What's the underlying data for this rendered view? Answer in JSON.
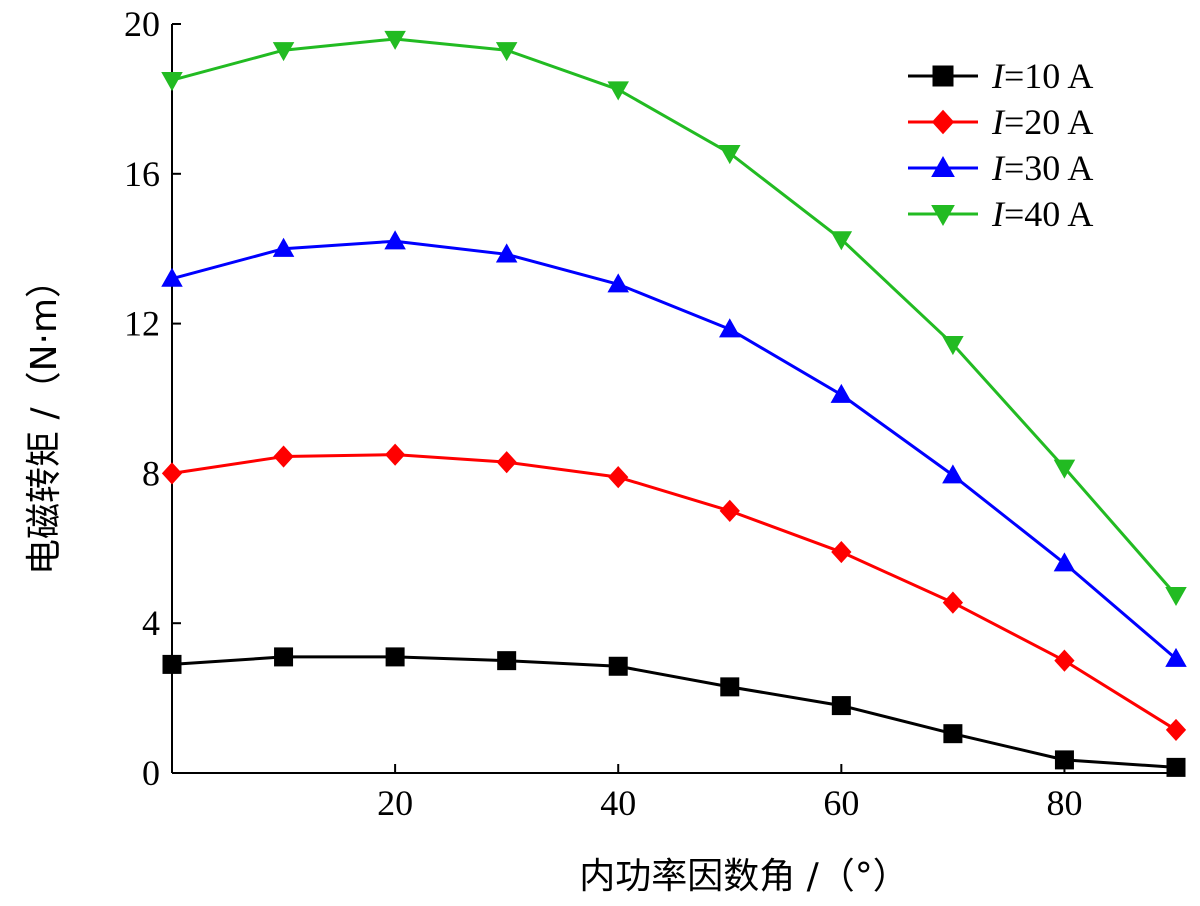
{
  "chart_data": {
    "type": "line",
    "xlabel": "内功率因数角 /（°）",
    "ylabel": "电磁转矩 /（N·m）",
    "xlim": [
      0,
      90
    ],
    "ylim": [
      0,
      20
    ],
    "xticks": [
      20,
      40,
      60,
      80
    ],
    "yticks": [
      0,
      4,
      8,
      12,
      16,
      20
    ],
    "xtick_labels": [
      "20",
      "40",
      "60",
      "80"
    ],
    "ytick_labels": [
      "0",
      "4",
      "8",
      "12",
      "16",
      "20"
    ],
    "legend_position": "top-right",
    "x": [
      0,
      10,
      20,
      30,
      40,
      50,
      60,
      70,
      80,
      90
    ],
    "series": [
      {
        "name": "I=10 A",
        "name_italic": "I",
        "name_rest": "=10 A",
        "color": "#000000",
        "marker": "square",
        "values": [
          2.9,
          3.1,
          3.1,
          3.0,
          2.85,
          2.3,
          1.8,
          1.05,
          0.35,
          0.15
        ]
      },
      {
        "name": "I=20 A",
        "name_italic": "I",
        "name_rest": "=20 A",
        "color": "#ff0000",
        "marker": "diamond",
        "values": [
          8.0,
          8.45,
          8.5,
          8.3,
          7.9,
          7.0,
          5.9,
          4.55,
          3.0,
          1.15
        ]
      },
      {
        "name": "I=30 A",
        "name_italic": "I",
        "name_rest": "=30 A",
        "color": "#0000ff",
        "marker": "triangle-up",
        "values": [
          13.2,
          14.0,
          14.2,
          13.85,
          13.05,
          11.85,
          10.1,
          7.95,
          5.6,
          3.05
        ]
      },
      {
        "name": "I=40 A",
        "name_italic": "I",
        "name_rest": "=40 A",
        "color": "#22bb22",
        "marker": "triangle-down",
        "values": [
          18.5,
          19.3,
          19.6,
          19.3,
          18.25,
          16.55,
          14.25,
          11.45,
          8.15,
          4.75
        ]
      }
    ]
  }
}
